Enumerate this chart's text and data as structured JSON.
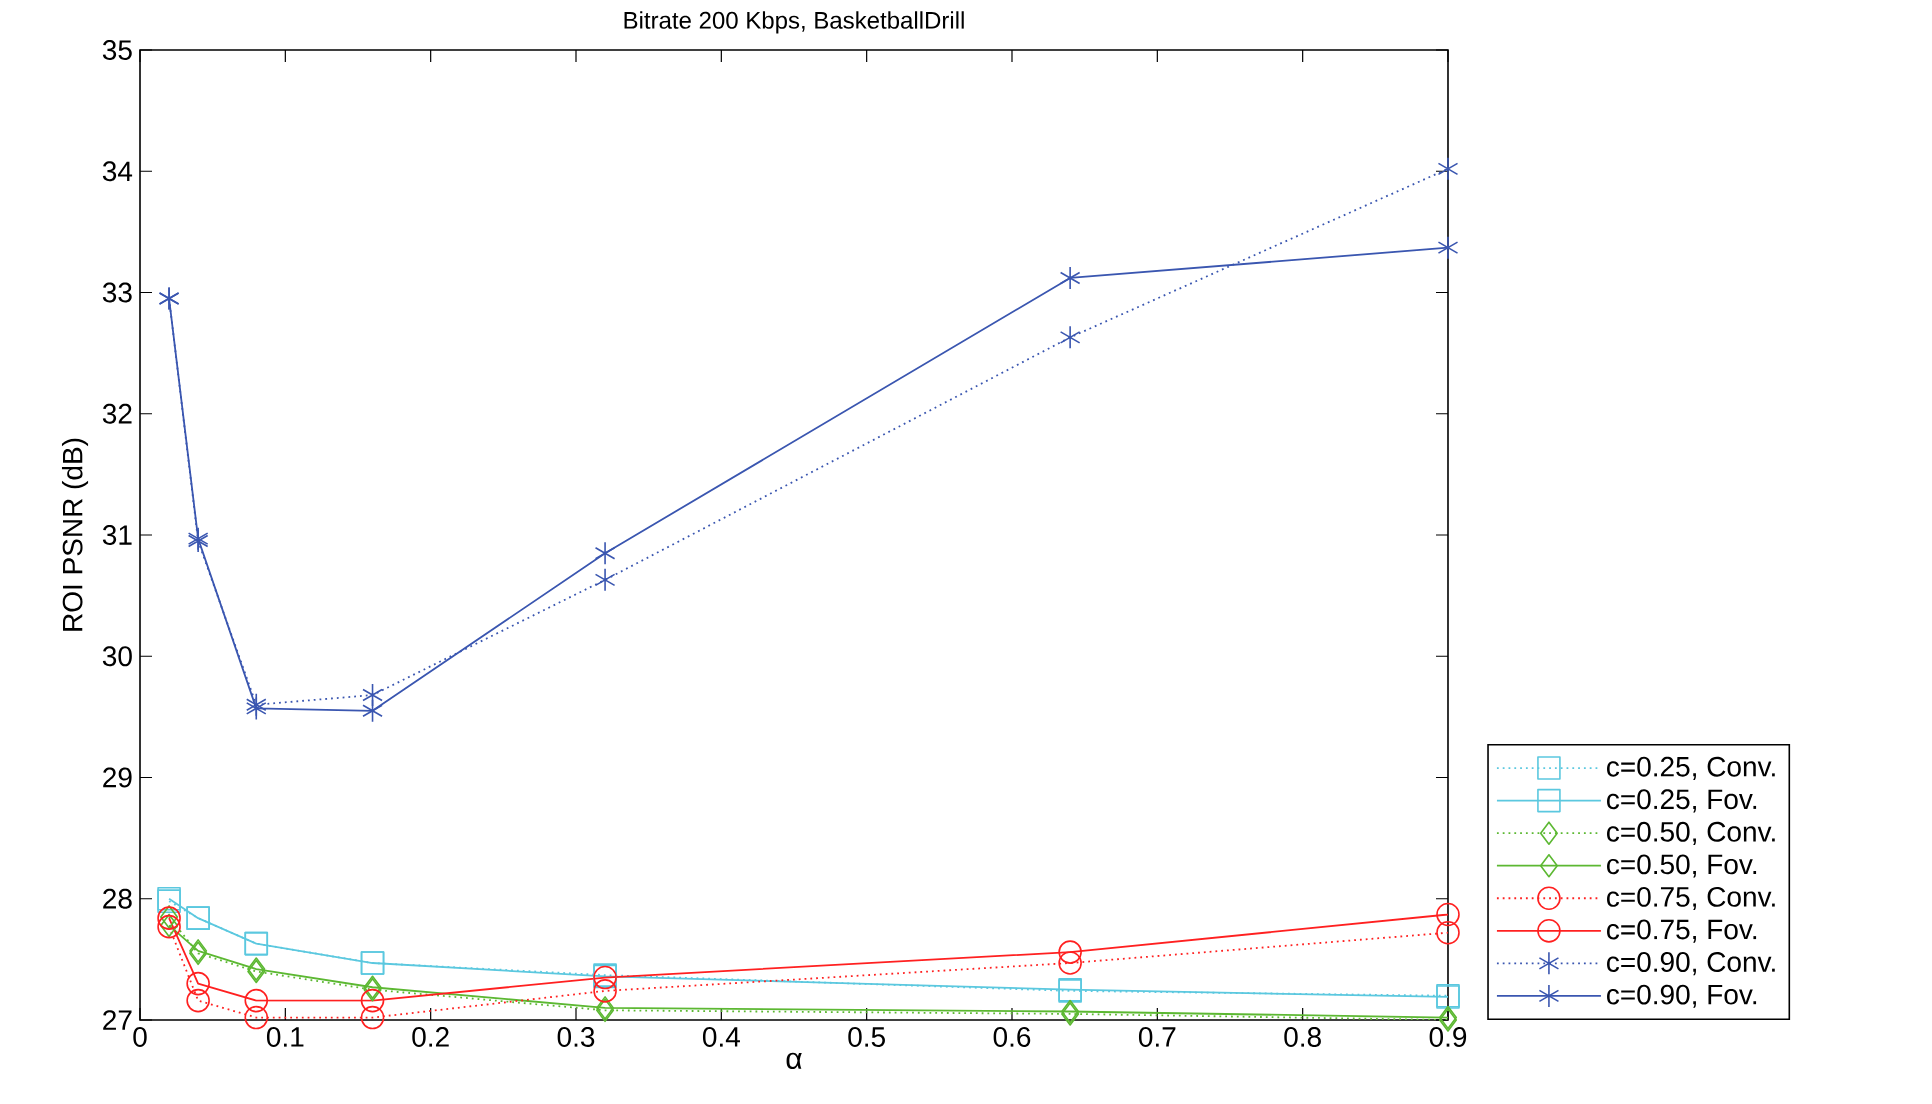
{
  "chart_data": {
    "type": "line",
    "title": "Bitrate 200 Kbps, BasketballDrill",
    "xlabel": "α",
    "ylabel": "ROI PSNR (dB)",
    "x": [
      0.02,
      0.04,
      0.08,
      0.16,
      0.32,
      0.64,
      0.9
    ],
    "series": [
      {
        "name": "c=0.25, Conv.",
        "color": "#5bc8df",
        "marker": "square",
        "line_style": "dotted",
        "values": [
          27.98,
          27.84,
          27.63,
          27.47,
          27.37,
          27.24,
          27.2
        ]
      },
      {
        "name": "c=0.25, Fov.",
        "color": "#5bc8df",
        "marker": "square",
        "line_style": "solid",
        "values": [
          28.0,
          27.84,
          27.63,
          27.47,
          27.36,
          27.25,
          27.19
        ]
      },
      {
        "name": "c=0.50, Conv.",
        "color": "#5cb832",
        "marker": "diamond",
        "line_style": "dotted",
        "values": [
          27.85,
          27.55,
          27.4,
          27.25,
          27.08,
          27.05,
          27.0
        ]
      },
      {
        "name": "c=0.50, Fov.",
        "color": "#5cb832",
        "marker": "diamond",
        "line_style": "solid",
        "values": [
          27.78,
          27.57,
          27.42,
          27.27,
          27.1,
          27.07,
          27.02
        ]
      },
      {
        "name": "c=0.75, Conv.",
        "color": "#ff2020",
        "marker": "circle",
        "line_style": "dotted",
        "values": [
          27.77,
          27.16,
          27.02,
          27.02,
          27.24,
          27.47,
          27.72
        ]
      },
      {
        "name": "c=0.75, Fov.",
        "color": "#ff2020",
        "marker": "circle",
        "line_style": "solid",
        "values": [
          27.84,
          27.3,
          27.16,
          27.16,
          27.35,
          27.56,
          27.87
        ]
      },
      {
        "name": "c=0.90, Conv.",
        "color": "#3a56b0",
        "marker": "cross",
        "line_style": "dotted",
        "values": [
          32.95,
          30.95,
          29.6,
          29.68,
          30.63,
          32.63,
          34.02
        ]
      },
      {
        "name": "c=0.90, Fov.",
        "color": "#3a56b0",
        "marker": "cross",
        "line_style": "solid",
        "values": [
          32.95,
          30.97,
          29.57,
          29.55,
          30.85,
          33.12,
          33.37
        ]
      }
    ],
    "xlim": [
      0,
      0.9
    ],
    "ylim": [
      27,
      35
    ],
    "xticks": [
      0,
      0.1,
      0.2,
      0.3,
      0.4,
      0.5,
      0.6,
      0.7,
      0.8,
      0.9
    ],
    "yticks": [
      27,
      28,
      29,
      30,
      31,
      32,
      33,
      34,
      35
    ],
    "grid": false,
    "legend": "bottom right"
  }
}
